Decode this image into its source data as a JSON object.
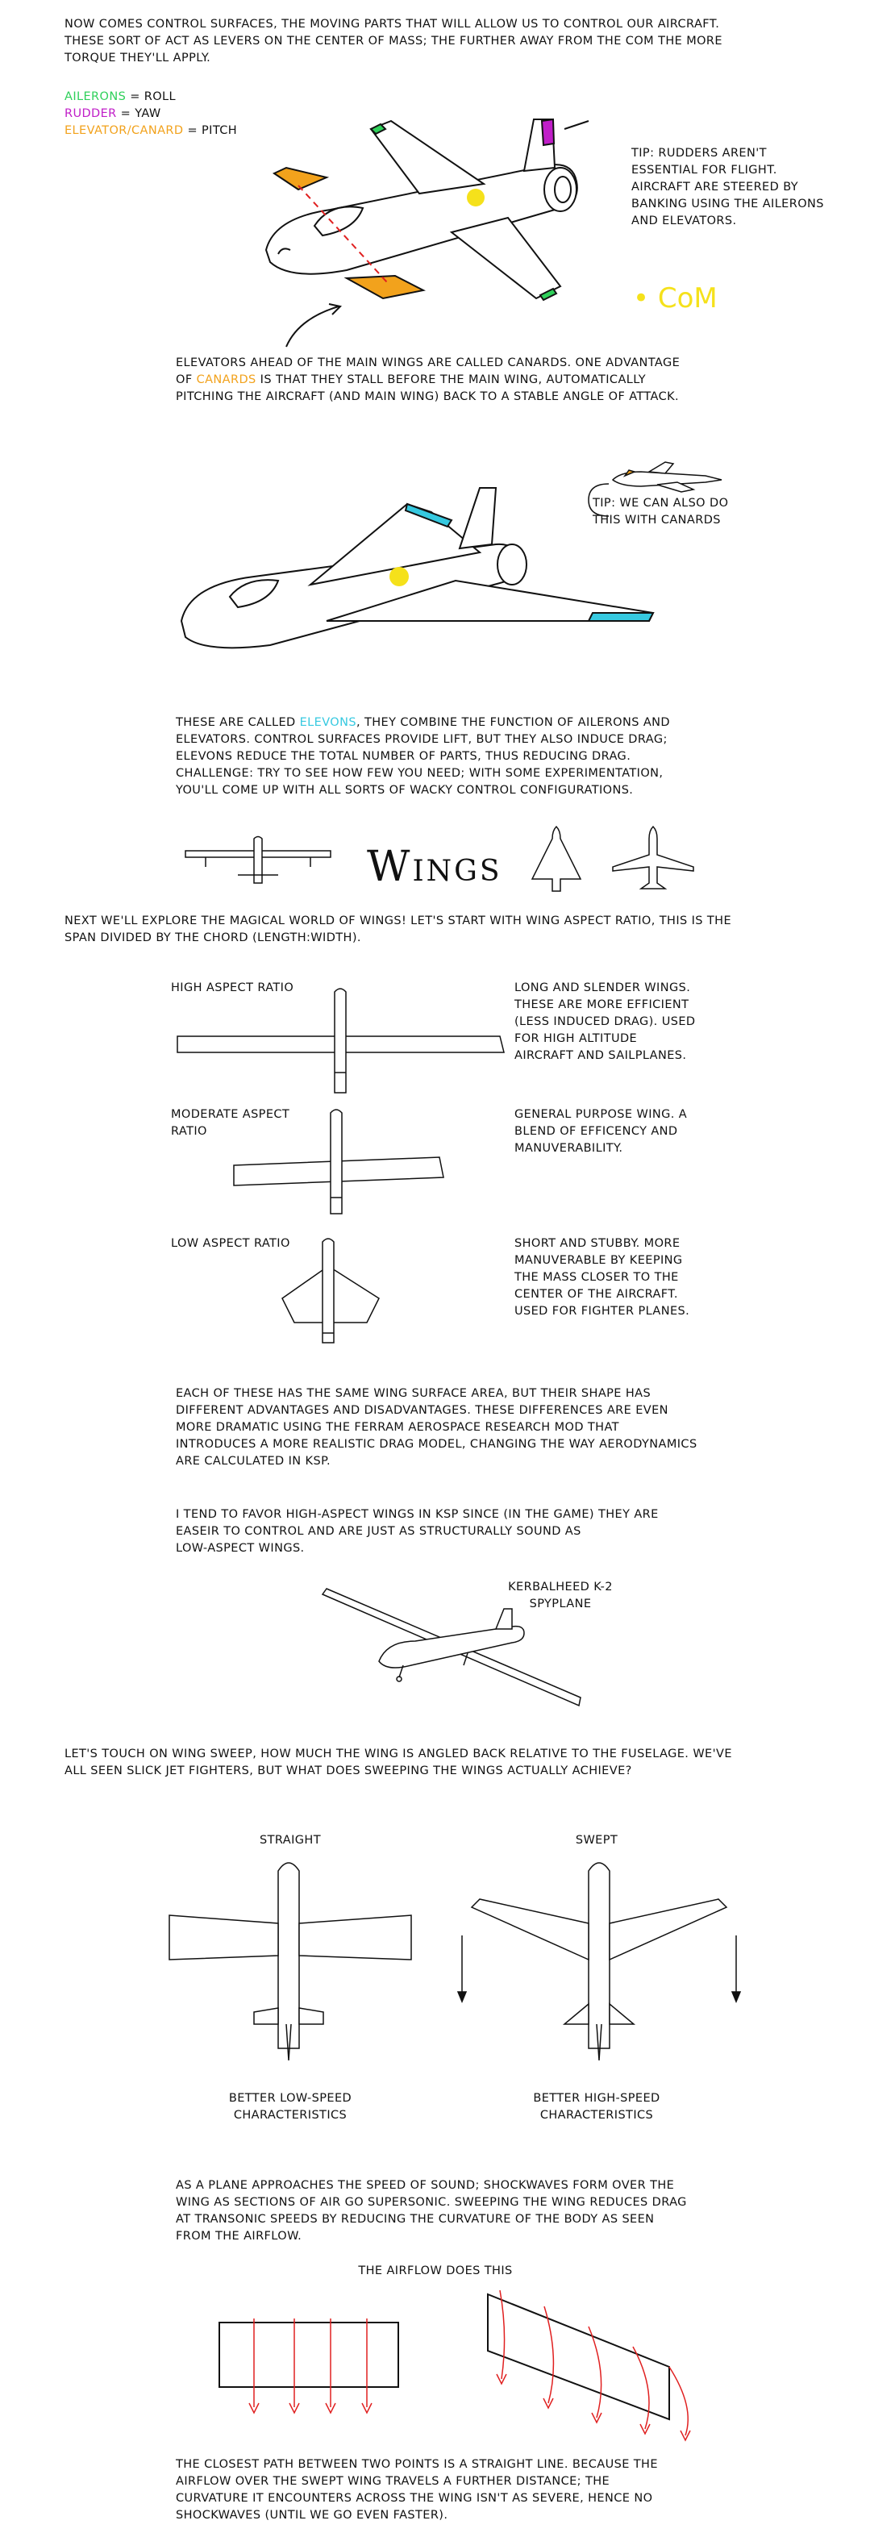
{
  "intro": {
    "lines": [
      "Now comes control surfaces, the moving parts that will allow us to control our aircraft.",
      "These sort of act as levers on the center of mass; the further away from the CoM the more",
      "torque they'll apply."
    ]
  },
  "legend": {
    "ailerons": "Ailerons",
    "ailerons_eq": " = Roll",
    "rudder": "Rudder",
    "rudder_eq": " = Yaw",
    "elevator": "Elevator/Canard",
    "elevator_eq": " = Pitch",
    "colors": {
      "ailerons": "#2fd05a",
      "rudder": "#c01ec8",
      "elevator": "#f2a21c",
      "elevons": "#36c9e0",
      "com": "#f5e11b"
    }
  },
  "tip_rudder": {
    "lines": [
      "Tip: Rudders aren't",
      "essential for flight.",
      "Aircraft are steered by",
      "banking using the ailerons",
      "and elevators."
    ]
  },
  "com_label": "• CoM",
  "canards": {
    "l1_a": "Elevators ahead of the main wings are called Canards.  One advantage",
    "l2_pre": "of ",
    "l2_word": "canards",
    "l2_post": " is that they stall before the main wing, automatically",
    "l3": "pitching the aircraft (and main wing) back to a stable angle of attack."
  },
  "tip_canards": {
    "lines": [
      "Tip: We can also do",
      "this with canards"
    ]
  },
  "elevons": {
    "l1_pre": "These are called ",
    "l1_word": "Elevons",
    "l1_post": ", they combine the function of ailerons and",
    "l2": "elevators.  Control surfaces provide lift, but they also induce drag;",
    "l3": "elevons reduce the total number of parts, thus reducing drag.",
    "l4": "Challenge: try to see how few you need; with some experimentation,",
    "l5": "you'll come up with all sorts of wacky control configurations."
  },
  "wings_title": "Wings",
  "aspect_intro": {
    "lines": [
      "Next we'll explore the magical world of wings!  Let's start with wing aspect ratio, this is the",
      "span divided by the chord (length:width)."
    ]
  },
  "aspect_rows": [
    {
      "label": [
        "High aspect ratio"
      ],
      "desc": [
        "Long and slender wings.",
        "These are more efficient",
        "(less induced drag).  Used",
        "for high altitude",
        "aircraft and sailplanes."
      ]
    },
    {
      "label": [
        "Moderate aspect",
        "ratio"
      ],
      "desc": [
        "General purpose wing.  A",
        "blend of efficency and",
        "manuverability."
      ]
    },
    {
      "label": [
        "Low aspect ratio"
      ],
      "desc": [
        "Short and stubby.  More",
        "manuverable by keeping",
        "the mass closer to the",
        "center of the aircraft.",
        "Used for fighter planes."
      ]
    }
  ],
  "surface_area": {
    "lines": [
      "Each of these has the same wing surface area, but their shape has",
      "different advantages and disadvantages.  These differences are even",
      "more dramatic using the Ferram Aerospace Research mod that",
      "introduces a more realistic drag model, changing the way aerodynamics",
      "are calculated in KSP."
    ]
  },
  "favor": {
    "lines": [
      "I tend to favor high-aspect wings in KSP since (in the game) they are",
      "easeir to control and are just as structurally sound as",
      "low-aspect wings."
    ]
  },
  "spyplane": {
    "lines": [
      "Kerbalheed K-2",
      "Spyplane"
    ]
  },
  "sweep_intro": {
    "lines": [
      "Let's touch on wing sweep, how much the wing is angled back relative to the fuselage.  We've",
      "all seen slick jet fighters, but what does sweeping the wings actually achieve?"
    ]
  },
  "straight": {
    "title": "Straight",
    "caption": [
      "Better low-speed",
      "characteristics"
    ]
  },
  "swept": {
    "title": "Swept",
    "caption": [
      "Better high-speed",
      "characteristics"
    ]
  },
  "sound": {
    "lines": [
      "As a plane approaches the speed of sound; shockwaves form over the",
      "wing as sections of air go supersonic.  Sweeping the wing reduces drag",
      "at transonic speeds by reducing the curvature of the body as seen",
      "from the airflow."
    ]
  },
  "airflow_title": "The airflow does this",
  "closest": {
    "lines": [
      "The closest path between two points is a straight line.  Because the",
      "airflow over the swept wing travels a further distance; the",
      "curvature it encounters across the wing isn't as severe, hence no",
      "shockwaves (until we go even faster)."
    ]
  }
}
